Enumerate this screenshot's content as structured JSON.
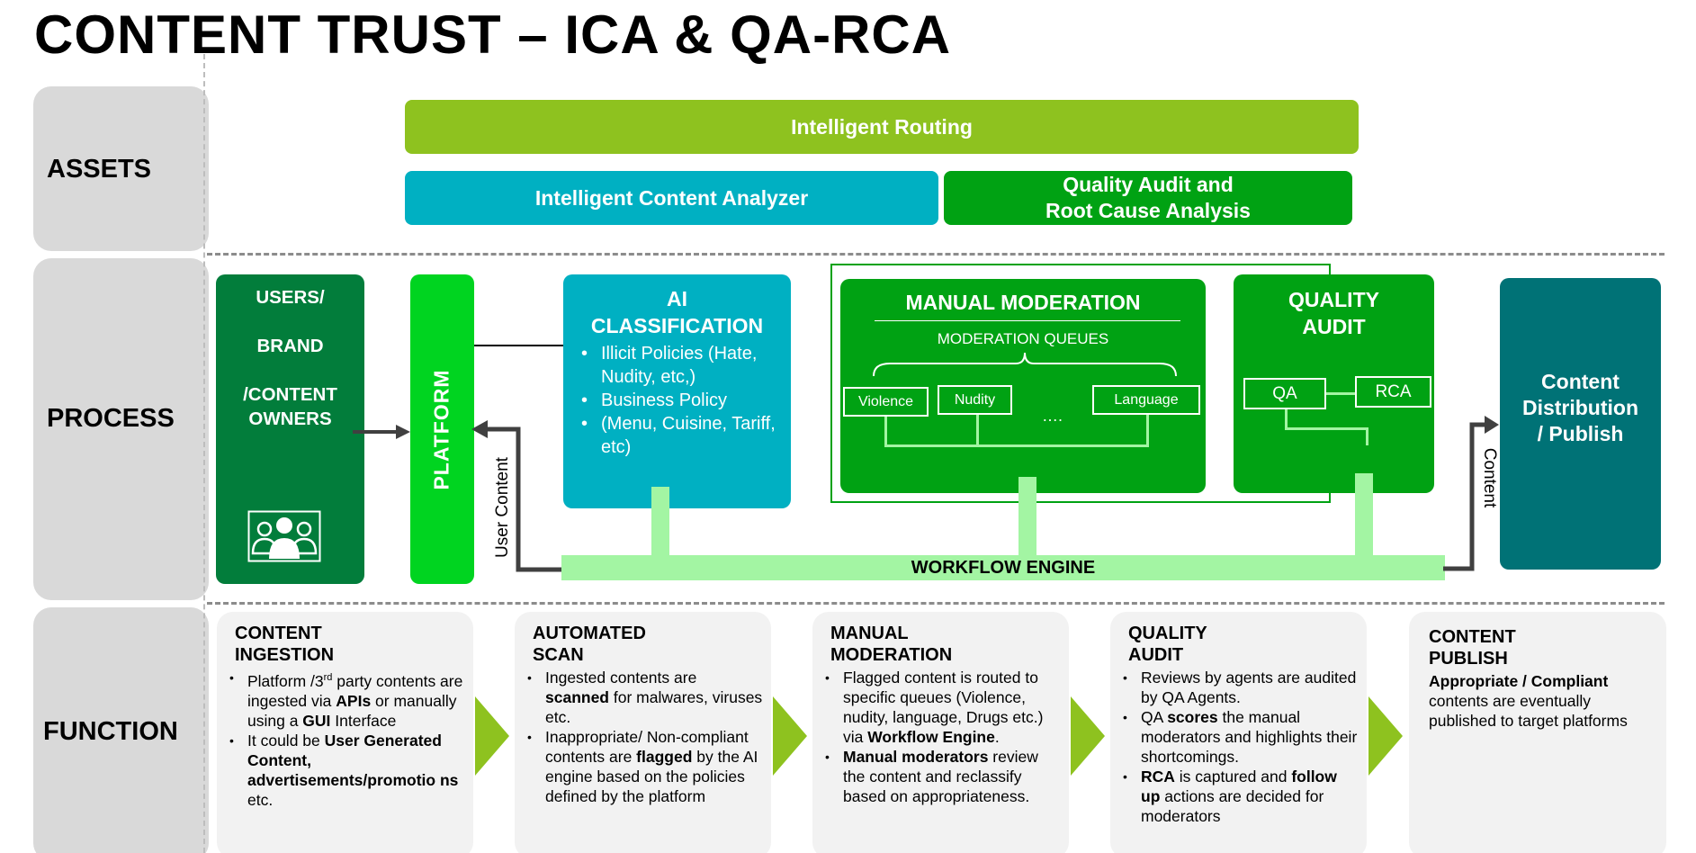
{
  "title": "CONTENT TRUST – ICA & QA-RCA",
  "rows": {
    "assets": "ASSETS",
    "process": "PROCESS",
    "function": "FUNCTION"
  },
  "assets": {
    "routing": "Intelligent Routing",
    "analyzer": "Intelligent Content Analyzer",
    "qa_rca_line1": "Quality Audit and",
    "qa_rca_line2": "Root Cause Analysis"
  },
  "process": {
    "users_line1": "USERS/",
    "users_line2": "BRAND",
    "users_line3": "/CONTENT",
    "users_line4": "OWNERS",
    "platform": "PLATFORM",
    "user_content": "User Content",
    "ai_title_line1": "AI",
    "ai_title_line2": "CLASSIFICATION",
    "ai_bullets": [
      "Illicit Policies (Hate, Nudity, etc,)",
      "Business Policy",
      "(Menu, Cuisine, Tariff, etc)"
    ],
    "manual_title": "MANUAL MODERATION",
    "queues_title": "MODERATION QUEUES",
    "queues": [
      "Violence",
      "Nudity",
      "Language"
    ],
    "queue_ellipsis": "….",
    "qa_title_line1": "QUALITY",
    "qa_title_line2": "AUDIT",
    "qa": "QA",
    "rca": "RCA",
    "workflow": "WORKFLOW ENGINE",
    "content": "Content",
    "publish_line1": "Content",
    "publish_line2": "Distribution",
    "publish_line3": "/ Publish"
  },
  "functions": {
    "ingestion": {
      "title_line1": "CONTENT",
      "title_line2": "INGESTION",
      "b1_a": "Platform /3",
      "b1_sup": "rd",
      "b1_b": " party  contents are ingested  via ",
      "b1_c": "APIs",
      "b1_d": " or manually using a ",
      "b1_e": "GUI",
      "b1_f": " Interface",
      "b2_a": "It could be ",
      "b2_b": "User Generated Content, advertisements/promotio ns",
      "b2_c": " etc."
    },
    "scan": {
      "title_line1": "AUTOMATED",
      "title_line2": "SCAN",
      "b1_a": "Ingested contents are ",
      "b1_b": "scanned",
      "b1_c": " for malwares, viruses etc.",
      "b2_a": "Inappropriate/ Non-compliant contents are ",
      "b2_b": "flagged",
      "b2_c": " by the AI engine based on the policies defined by the platform"
    },
    "moderation": {
      "title_line1": "MANUAL",
      "title_line2": "MODERATION",
      "b1_a": "Flagged content is routed to specific queues (Violence, nudity, language, Drugs etc.) via ",
      "b1_b": "Workflow Engine",
      "b1_c": ".",
      "b2_a": "Manual moderators",
      "b2_b": " review the content and reclassify based on appropriateness."
    },
    "audit": {
      "title_line1": "QUALITY",
      "title_line2": "AUDIT",
      "b1": "Reviews by agents  are audited by QA Agents.",
      "b2_a": "QA ",
      "b2_b": "scores",
      "b2_c": " the manual moderators and highlights their shortcomings.",
      "b3_a": "RCA",
      "b3_b": " is captured and ",
      "b3_c": "follow up",
      "b3_d": " actions are decided for moderators"
    },
    "publish": {
      "title_line1": "CONTENT",
      "title_line2": "PUBLISH",
      "t_a": "Appropriate / Compliant",
      "t_b": " contents are eventually published to target platforms"
    }
  },
  "colors": {
    "lime": "#8ec21f",
    "teal": "#00b0c2",
    "green": "#00a213",
    "dark_green": "#027d3b",
    "bright_green": "#00d420",
    "dark_teal": "#007276",
    "light_green": "#a3f5a3",
    "gray": "#d9d9d9"
  }
}
